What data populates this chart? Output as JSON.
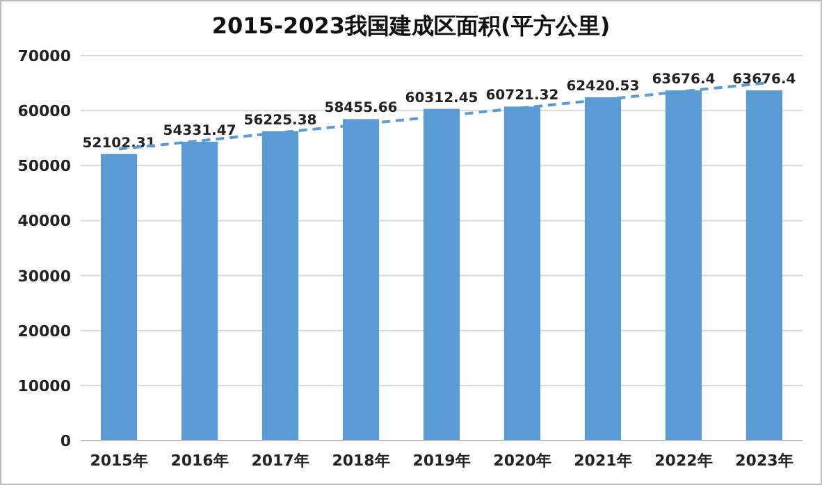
{
  "chart_data": {
    "type": "bar",
    "title": "2015-2023我国建成区面积(平方公里)",
    "categories": [
      "2015年",
      "2016年",
      "2017年",
      "2018年",
      "2019年",
      "2020年",
      "2021年",
      "2022年",
      "2023年"
    ],
    "series": [
      {
        "color": "#5b9bd5",
        "values": [
          52102.31,
          54331.47,
          56225.38,
          58455.66,
          60312.45,
          60721.32,
          62420.53,
          63676.4,
          63676.4
        ],
        "value_labels": [
          "52102.31",
          "54331.47",
          "56225.38",
          "58455.66",
          "60312.45",
          "60721.32",
          "62420.53",
          "63676.4",
          "63676.4"
        ]
      },
      {
        "type": "line",
        "color": "#5b9bd5",
        "x": [
          "2015年",
          "2023年"
        ],
        "values": [
          53000,
          65000
        ],
        "line_style": "dashed",
        "marker": "none"
      }
    ],
    "ylim": [
      0,
      70000
    ],
    "yticks": [
      0,
      10000,
      20000,
      30000,
      40000,
      50000,
      60000,
      70000
    ],
    "grid": "y"
  }
}
